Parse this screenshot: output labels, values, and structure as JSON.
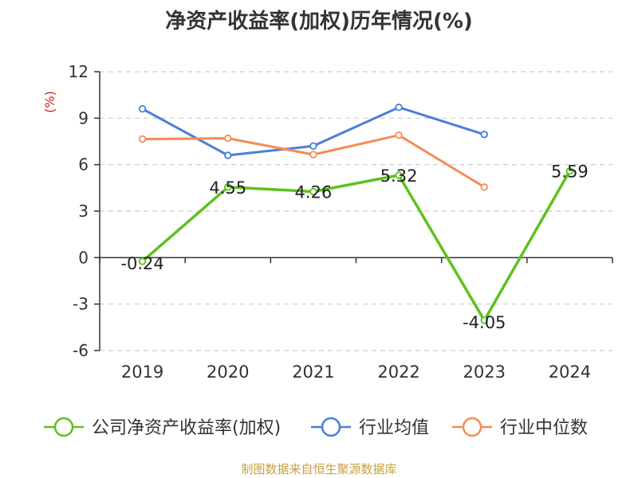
{
  "chart_data": {
    "type": "line",
    "title": "净资产收益率(加权)历年情况(%)",
    "ylabel": "(%)",
    "categories": [
      "2019",
      "2020",
      "2021",
      "2022",
      "2023",
      "2024"
    ],
    "ylim": [
      -6,
      12
    ],
    "yticks": [
      -6,
      -3,
      0,
      3,
      6,
      9,
      12
    ],
    "grid": true,
    "legend_position": "bottom",
    "series": [
      {
        "name": "公司净资产收益率(加权)",
        "color": "#5cc21e",
        "values": [
          -0.24,
          4.55,
          4.26,
          5.32,
          -4.05,
          5.59
        ],
        "labels": [
          "-0.24",
          "4.55",
          "4.26",
          "5.32",
          "-4.05",
          "5.59"
        ]
      },
      {
        "name": "行业均值",
        "color": "#4a7fd8",
        "values": [
          9.6,
          6.6,
          7.2,
          9.7,
          7.95,
          null
        ]
      },
      {
        "name": "行业中位数",
        "color": "#f58b55",
        "values": [
          7.65,
          7.7,
          6.65,
          7.9,
          4.55,
          null
        ]
      }
    ]
  },
  "footer": {
    "source": "制图数据来自恒生聚源数据库"
  }
}
